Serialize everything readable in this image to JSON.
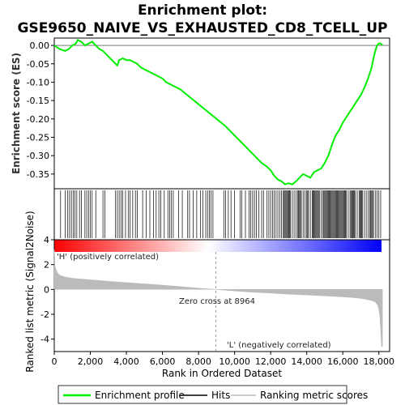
{
  "chart_data": {
    "type": "line",
    "title_line1": "Enrichment plot:",
    "title_line2": "GSE9650_NAIVE_VS_EXHAUSTED_CD8_TCELL_UP",
    "ylabel_top": "Enrichment score (ES)",
    "ylabel_bottom": "Ranked list metric (Signal2Noise)",
    "xlabel": "Rank in Ordered Dataset",
    "xlim": [
      0,
      19000
    ],
    "x_ticks": [
      0,
      2000,
      4000,
      6000,
      8000,
      10000,
      12000,
      14000,
      16000,
      18000
    ],
    "x_tick_labels": [
      "0",
      "2,000",
      "4,000",
      "6,000",
      "8,000",
      "10,000",
      "12,000",
      "14,000",
      "16,000",
      "18,000"
    ],
    "es_ylim": [
      -0.39,
      0.02
    ],
    "es_ticks": [
      0.0,
      -0.05,
      -0.1,
      -0.15,
      -0.2,
      -0.25,
      -0.3,
      -0.35
    ],
    "es_tick_labels": [
      "0.00",
      "-0.05",
      "-0.10",
      "-0.15",
      "-0.20",
      "-0.25",
      "-0.30",
      "-0.35"
    ],
    "metric_ylim": [
      -5,
      4
    ],
    "metric_ticks": [
      4,
      2,
      0,
      -2,
      -4
    ],
    "metric_tick_labels": [
      "4",
      "2",
      "0",
      "-2",
      "-4"
    ],
    "series": [
      {
        "name": "Enrichment profile",
        "color": "#00ee00",
        "x": [
          0,
          300,
          600,
          800,
          1000,
          1200,
          1300,
          1500,
          1700,
          1900,
          2100,
          2300,
          2500,
          2700,
          2900,
          3100,
          3300,
          3500,
          3600,
          3800,
          4000,
          4200,
          4400,
          4600,
          4800,
          5000,
          5200,
          5400,
          5600,
          5800,
          6000,
          6200,
          6400,
          6600,
          6800,
          7000,
          7500,
          8000,
          8500,
          9000,
          9500,
          10000,
          10500,
          11000,
          11500,
          11800,
          12000,
          12200,
          12400,
          12600,
          12800,
          13000,
          13200,
          13400,
          13600,
          13800,
          14000,
          14200,
          14400,
          14600,
          14800,
          15000,
          15200,
          15400,
          15600,
          15800,
          16000,
          16200,
          16400,
          16600,
          16800,
          17000,
          17200,
          17400,
          17600,
          17700,
          17800,
          17900,
          18000,
          18100,
          18200
        ],
        "y": [
          0.0,
          -0.01,
          -0.015,
          -0.01,
          0.0,
          0.005,
          0.015,
          0.01,
          0.0,
          0.005,
          0.01,
          0.0,
          -0.01,
          -0.015,
          -0.025,
          -0.035,
          -0.045,
          -0.055,
          -0.04,
          -0.035,
          -0.04,
          -0.04,
          -0.045,
          -0.05,
          -0.06,
          -0.065,
          -0.07,
          -0.075,
          -0.08,
          -0.085,
          -0.09,
          -0.1,
          -0.105,
          -0.11,
          -0.115,
          -0.12,
          -0.14,
          -0.16,
          -0.18,
          -0.2,
          -0.22,
          -0.245,
          -0.27,
          -0.295,
          -0.32,
          -0.33,
          -0.34,
          -0.355,
          -0.365,
          -0.37,
          -0.378,
          -0.375,
          -0.378,
          -0.37,
          -0.36,
          -0.35,
          -0.355,
          -0.36,
          -0.345,
          -0.34,
          -0.335,
          -0.32,
          -0.3,
          -0.27,
          -0.245,
          -0.23,
          -0.21,
          -0.195,
          -0.18,
          -0.165,
          -0.15,
          -0.135,
          -0.115,
          -0.09,
          -0.06,
          -0.035,
          -0.015,
          0.0,
          0.005,
          0.005,
          0.0
        ]
      },
      {
        "name": "Hits",
        "color": "#000000",
        "x": [
          350,
          600,
          750,
          850,
          950,
          1050,
          1150,
          1250,
          1400,
          1500,
          1700,
          1800,
          1900,
          2000,
          2100,
          2300,
          2700,
          2800,
          3400,
          3500,
          3600,
          3700,
          3800,
          3950,
          4100,
          4200,
          4350,
          4500,
          4600,
          4900,
          5100,
          5300,
          5500,
          5650,
          5800,
          5900,
          6100,
          6300,
          6400,
          6500,
          6600,
          6900,
          7100,
          7400,
          7500,
          7700,
          7900,
          8100,
          8250,
          8400,
          8500,
          8600,
          8700,
          8800,
          9400,
          9500,
          9650,
          9800,
          10000,
          10300,
          10400,
          10600,
          10800,
          10900,
          11000,
          11100,
          11200,
          11350,
          11500,
          11600,
          11800,
          11900,
          12000,
          12100,
          12200,
          12300,
          12400,
          12500,
          12600,
          12700,
          12750,
          12800,
          12850,
          12900,
          12950,
          13000,
          13050,
          13100,
          13200,
          13300,
          13400,
          13500,
          13550,
          13600,
          13650,
          13700,
          13800,
          13900,
          14000,
          14050,
          14100,
          14200,
          14300,
          14350,
          14400,
          14450,
          14500,
          14550,
          14600,
          14650,
          14700,
          14800,
          14900,
          14950,
          15000,
          15050,
          15100,
          15150,
          15200,
          15250,
          15300,
          15350,
          15400,
          15450,
          15500,
          15550,
          15600,
          15650,
          15700,
          15750,
          15800,
          15850,
          15900,
          15950,
          16000,
          16050,
          16100,
          16150,
          16200,
          16300,
          16400,
          16450,
          16500,
          16550,
          16600,
          16650,
          16700,
          16800,
          16900,
          16950,
          17000,
          17050,
          17100,
          17200,
          17300,
          17400,
          17500,
          17550,
          17600,
          17650,
          17700,
          17800,
          17900,
          18000,
          18100
        ]
      },
      {
        "name": "Ranking metric scores",
        "color": "#bbbbbb",
        "x": [
          0,
          50,
          150,
          300,
          600,
          1000,
          2000,
          3000,
          4000,
          5000,
          6000,
          7000,
          8000,
          8964,
          10000,
          11000,
          12000,
          13000,
          14000,
          15000,
          16000,
          16500,
          17000,
          17300,
          17600,
          17800,
          17950,
          18050,
          18150,
          18200
        ],
        "y": [
          3.2,
          1.8,
          1.4,
          1.15,
          1.0,
          0.9,
          0.78,
          0.66,
          0.55,
          0.45,
          0.35,
          0.23,
          0.1,
          0.0,
          -0.12,
          -0.22,
          -0.3,
          -0.38,
          -0.45,
          -0.52,
          -0.6,
          -0.65,
          -0.72,
          -0.8,
          -0.9,
          -1.0,
          -1.3,
          -2.0,
          -4.6,
          -4.6
        ]
      }
    ],
    "zero_cross_label": "Zero cross at 8964",
    "zero_cross_x": 8964,
    "pos_label": "'H' (positively correlated)",
    "neg_label": "'L' (negatively correlated)",
    "pos_color": "#e00000",
    "neg_color": "#0000dd",
    "gradient_start_color": "#ff0000",
    "gradient_mid_color": "#ffffff",
    "gradient_end_color": "#0000ff",
    "grid": false,
    "legend_position": "bottom"
  }
}
